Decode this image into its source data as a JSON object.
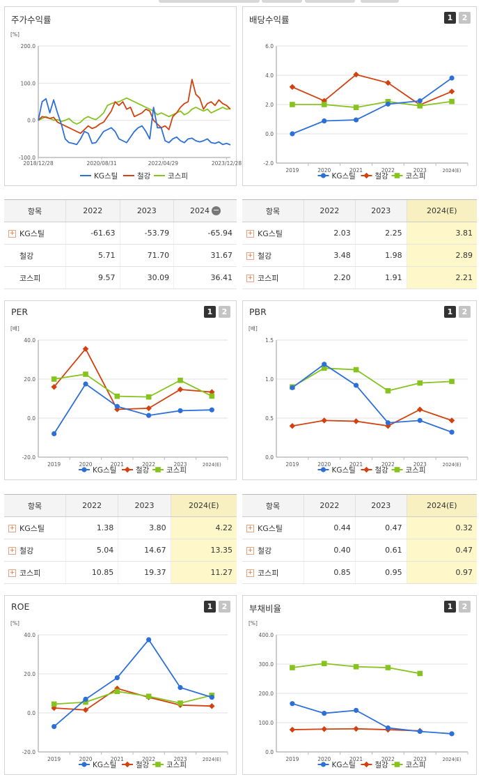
{
  "colors": {
    "kg": "#2c6fd8",
    "steel": "#d2410f",
    "kospi": "#86c31e",
    "highlight": "#fdf7c9"
  },
  "legend_labels": [
    "KG스틸",
    "철강",
    "코스피"
  ],
  "page_buttons": [
    "1",
    "2"
  ],
  "panels": {
    "stock_return": {
      "title": "주가수익률"
    },
    "dividend": {
      "title": "배당수익률"
    },
    "per": {
      "title": "PER"
    },
    "pbr": {
      "title": "PBR"
    },
    "roe": {
      "title": "ROE"
    },
    "debt": {
      "title": "부채비율"
    }
  },
  "tables": {
    "stock_return": {
      "header": [
        "항목",
        "2022",
        "2023",
        "2024"
      ],
      "rows": [
        {
          "name": "KG스틸",
          "expand": true,
          "values": [
            "-61.63",
            "-53.79",
            "-65.94"
          ]
        },
        {
          "name": "철강",
          "expand": false,
          "values": [
            "5.71",
            "71.70",
            "31.67"
          ]
        },
        {
          "name": "코스피",
          "expand": false,
          "values": [
            "9.57",
            "30.09",
            "36.41"
          ]
        }
      ]
    },
    "dividend": {
      "header": [
        "항목",
        "2022",
        "2023",
        "2024(E)"
      ],
      "rows": [
        {
          "name": "KG스틸",
          "expand": true,
          "values": [
            "2.03",
            "2.25",
            "3.81"
          ]
        },
        {
          "name": "철강",
          "expand": true,
          "values": [
            "3.48",
            "1.98",
            "2.89"
          ]
        },
        {
          "name": "코스피",
          "expand": true,
          "values": [
            "2.20",
            "1.91",
            "2.21"
          ]
        }
      ]
    },
    "per": {
      "header": [
        "항목",
        "2022",
        "2023",
        "2024(E)"
      ],
      "rows": [
        {
          "name": "KG스틸",
          "expand": true,
          "values": [
            "1.38",
            "3.80",
            "4.22"
          ]
        },
        {
          "name": "철강",
          "expand": true,
          "values": [
            "5.04",
            "14.67",
            "13.35"
          ]
        },
        {
          "name": "코스피",
          "expand": true,
          "values": [
            "10.85",
            "19.37",
            "11.27"
          ]
        }
      ]
    },
    "pbr": {
      "header": [
        "항목",
        "2022",
        "2023",
        "2024(E)"
      ],
      "rows": [
        {
          "name": "KG스틸",
          "expand": true,
          "values": [
            "0.44",
            "0.47",
            "0.32"
          ]
        },
        {
          "name": "철강",
          "expand": true,
          "values": [
            "0.40",
            "0.61",
            "0.47"
          ]
        },
        {
          "name": "코스피",
          "expand": true,
          "values": [
            "0.85",
            "0.95",
            "0.97"
          ]
        }
      ]
    }
  },
  "chart_data": [
    {
      "id": "stock_return",
      "type": "line",
      "title": "주가수익률",
      "ylabel": "[%]",
      "ylim": [
        -100,
        200
      ],
      "yticks": [
        "200.0",
        "100.0",
        "0.0",
        "-100.0"
      ],
      "xlim": [
        0,
        100
      ],
      "xtick_labels": [
        "2018/12/28",
        "2020/08/31",
        "2022/04/29",
        "2023/12/28"
      ],
      "xtick_pos": [
        0,
        33,
        65,
        98
      ],
      "series": [
        {
          "name": "KG스틸",
          "x": [
            0,
            2,
            4,
            6,
            8,
            10,
            12,
            14,
            16,
            18,
            20,
            22,
            24,
            26,
            28,
            30,
            32,
            34,
            36,
            38,
            40,
            42,
            44,
            46,
            48,
            50,
            52,
            54,
            56,
            58,
            60,
            62,
            64,
            66,
            68,
            70,
            72,
            74,
            76,
            78,
            80,
            82,
            84,
            86,
            88,
            90,
            92,
            94,
            96,
            98,
            100
          ],
          "values": [
            0,
            50,
            58,
            20,
            55,
            20,
            -10,
            -50,
            -60,
            -62,
            -65,
            -50,
            -30,
            -35,
            -62,
            -60,
            -45,
            -30,
            -25,
            -20,
            -30,
            -50,
            -55,
            -60,
            -45,
            -30,
            -20,
            -15,
            -30,
            -50,
            35,
            -20,
            -20,
            -55,
            -60,
            -50,
            -45,
            -55,
            -60,
            -50,
            -48,
            -55,
            -58,
            -55,
            -50,
            -60,
            -62,
            -58,
            -65,
            -62,
            -66
          ]
        },
        {
          "name": "철강",
          "x": [
            0,
            2,
            4,
            6,
            8,
            10,
            12,
            14,
            16,
            18,
            20,
            22,
            24,
            26,
            28,
            30,
            32,
            34,
            36,
            38,
            40,
            42,
            44,
            46,
            48,
            50,
            52,
            54,
            56,
            58,
            60,
            62,
            64,
            66,
            68,
            70,
            72,
            74,
            76,
            78,
            80,
            82,
            84,
            86,
            88,
            90,
            92,
            94,
            96,
            98,
            100
          ],
          "values": [
            0,
            10,
            8,
            5,
            8,
            -5,
            -10,
            -15,
            -20,
            -25,
            -30,
            -35,
            -25,
            -15,
            -22,
            -18,
            -10,
            -5,
            10,
            25,
            50,
            40,
            50,
            30,
            35,
            10,
            15,
            20,
            30,
            25,
            0,
            -10,
            -20,
            -15,
            -25,
            10,
            20,
            35,
            45,
            50,
            110,
            70,
            60,
            30,
            45,
            50,
            40,
            55,
            45,
            40,
            30
          ]
        },
        {
          "name": "코스피",
          "x": [
            0,
            2,
            4,
            6,
            8,
            10,
            12,
            14,
            16,
            18,
            20,
            22,
            24,
            26,
            28,
            30,
            32,
            34,
            36,
            38,
            40,
            42,
            44,
            46,
            48,
            50,
            52,
            54,
            56,
            58,
            60,
            62,
            64,
            66,
            68,
            70,
            72,
            74,
            76,
            78,
            80,
            82,
            84,
            86,
            88,
            90,
            92,
            94,
            96,
            98,
            100
          ],
          "values": [
            0,
            5,
            10,
            5,
            0,
            2,
            -3,
            0,
            5,
            -5,
            -10,
            -5,
            5,
            10,
            5,
            2,
            10,
            20,
            40,
            45,
            48,
            50,
            55,
            60,
            55,
            50,
            45,
            40,
            35,
            30,
            25,
            15,
            20,
            15,
            10,
            15,
            20,
            25,
            15,
            20,
            30,
            35,
            30,
            25,
            30,
            20,
            25,
            30,
            35,
            30,
            32
          ]
        }
      ]
    },
    {
      "id": "dividend",
      "type": "line",
      "title": "배당수익률",
      "ylim": [
        -2,
        6
      ],
      "yticks": [
        "6.0",
        "4.0",
        "2.0",
        "0.0",
        "-2.0"
      ],
      "categories": [
        "2019",
        "2020",
        "2021",
        "2022",
        "2023",
        "2024(E)"
      ],
      "series": [
        {
          "name": "KG스틸",
          "values": [
            0.0,
            0.88,
            0.95,
            2.03,
            2.25,
            3.81
          ]
        },
        {
          "name": "철강",
          "values": [
            3.2,
            2.25,
            4.05,
            3.48,
            1.98,
            2.89
          ]
        },
        {
          "name": "코스피",
          "values": [
            2.0,
            2.0,
            1.8,
            2.2,
            1.91,
            2.21
          ]
        }
      ]
    },
    {
      "id": "per",
      "type": "line",
      "title": "PER",
      "ylabel": "[배]",
      "ylim": [
        -20,
        40
      ],
      "yticks": [
        "40.0",
        "20.0",
        "0.0",
        "-20.0"
      ],
      "categories": [
        "2019",
        "2020",
        "2021",
        "2022",
        "2023",
        "2024(E)"
      ],
      "series": [
        {
          "name": "KG스틸",
          "values": [
            -8.0,
            17.5,
            6.0,
            1.38,
            3.8,
            4.22
          ]
        },
        {
          "name": "철강",
          "values": [
            16.0,
            35.5,
            4.5,
            5.04,
            14.67,
            13.35
          ]
        },
        {
          "name": "코스피",
          "values": [
            20.0,
            22.5,
            11.2,
            10.85,
            19.37,
            11.27
          ]
        }
      ]
    },
    {
      "id": "pbr",
      "type": "line",
      "title": "PBR",
      "ylabel": "[배]",
      "ylim": [
        0,
        1.5
      ],
      "yticks": [
        "1.5",
        "1.0",
        "0.5",
        "0.0"
      ],
      "categories": [
        "2019",
        "2020",
        "2021",
        "2022",
        "2023",
        "2024(E)"
      ],
      "series": [
        {
          "name": "KG스틸",
          "values": [
            0.89,
            1.19,
            0.92,
            0.44,
            0.47,
            0.32
          ]
        },
        {
          "name": "철강",
          "values": [
            0.4,
            0.47,
            0.46,
            0.4,
            0.61,
            0.47
          ]
        },
        {
          "name": "코스피",
          "values": [
            0.9,
            1.14,
            1.12,
            0.85,
            0.95,
            0.97
          ]
        }
      ]
    },
    {
      "id": "roe",
      "type": "line",
      "title": "ROE",
      "ylabel": "[%]",
      "ylim": [
        -20,
        40
      ],
      "yticks": [
        "40.0",
        "20.0",
        "0.0",
        "-20.0"
      ],
      "categories": [
        "2019",
        "2020",
        "2021",
        "2022",
        "2023",
        "2024(E)"
      ],
      "series": [
        {
          "name": "KG스틸",
          "values": [
            -7.0,
            7.0,
            18.0,
            37.5,
            13.0,
            8.0
          ]
        },
        {
          "name": "철강",
          "values": [
            2.5,
            1.5,
            12.5,
            8.0,
            4.0,
            3.5
          ]
        },
        {
          "name": "코스피",
          "values": [
            4.5,
            5.5,
            11.0,
            8.5,
            5.0,
            9.0
          ]
        }
      ]
    },
    {
      "id": "debt",
      "type": "line",
      "title": "부채비율",
      "ylabel": "[%]",
      "ylim": [
        0,
        400
      ],
      "yticks": [
        "400.0",
        "300.0",
        "200.0",
        "100.0",
        "0.0"
      ],
      "categories": [
        "2019",
        "2020",
        "2021",
        "2022",
        "2023",
        "2024(E)"
      ],
      "series": [
        {
          "name": "KG스틸",
          "values": [
            165,
            132,
            142,
            82,
            70,
            62
          ]
        },
        {
          "name": "철강",
          "values": [
            76,
            78,
            79,
            76,
            72,
            null
          ]
        },
        {
          "name": "코스피",
          "values": [
            288,
            302,
            291,
            288,
            268,
            null
          ]
        }
      ]
    }
  ]
}
